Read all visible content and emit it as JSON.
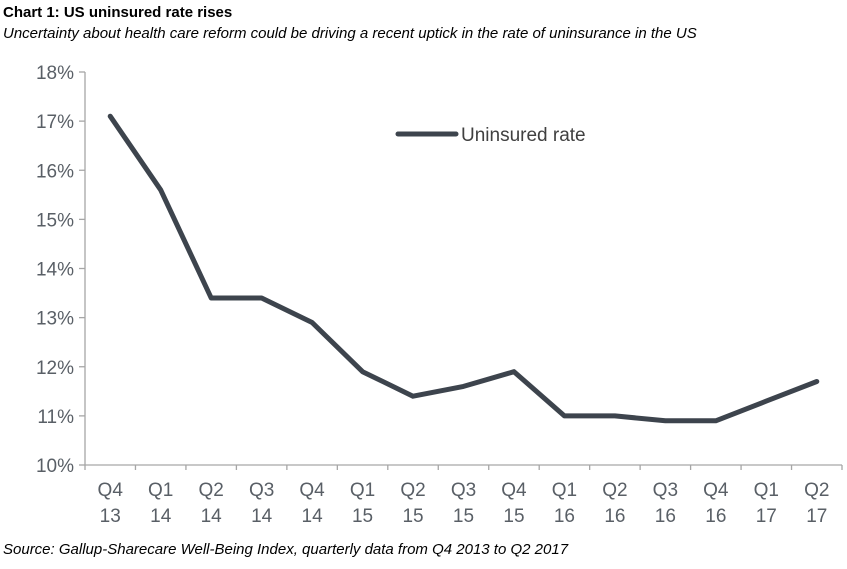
{
  "header": {
    "title": "Chart 1: US uninsured rate rises",
    "subtitle": "Uncertainty about health care reform could be driving a recent uptick in the rate of uninsurance in the US"
  },
  "footer": {
    "source": "Source: Gallup-Sharecare Well-Being Index, quarterly data from Q4 2013 to Q2 2017"
  },
  "chart_data": {
    "type": "line",
    "title": "Chart 1: US uninsured rate rises",
    "subtitle": "Uncertainty about health care reform could be driving a recent uptick in the rate of uninsurance in the US",
    "categories": [
      "Q4 13",
      "Q1 14",
      "Q2 14",
      "Q3 14",
      "Q4 14",
      "Q1 15",
      "Q2 15",
      "Q3 15",
      "Q4 15",
      "Q1 16",
      "Q2 16",
      "Q3 16",
      "Q4 16",
      "Q1 17",
      "Q2 17"
    ],
    "series": [
      {
        "name": "Uninsured rate",
        "values": [
          17.1,
          15.6,
          13.4,
          13.4,
          12.9,
          11.9,
          11.4,
          11.6,
          11.9,
          11.0,
          11.0,
          10.9,
          10.9,
          11.3,
          11.7
        ]
      }
    ],
    "xlabel": "",
    "ylabel": "",
    "ylim": [
      10,
      18
    ],
    "ytick_step": 1,
    "ytick_suffix": "%",
    "grid": false,
    "legend_position": "top-center-inside",
    "legend_label": "Uninsured rate"
  },
  "colors": {
    "line": "#3d444d",
    "axis": "#a6a6a6",
    "axis_label": "#595f66",
    "legend_text": "#404040",
    "text": "#000000",
    "background": "#ffffff"
  }
}
